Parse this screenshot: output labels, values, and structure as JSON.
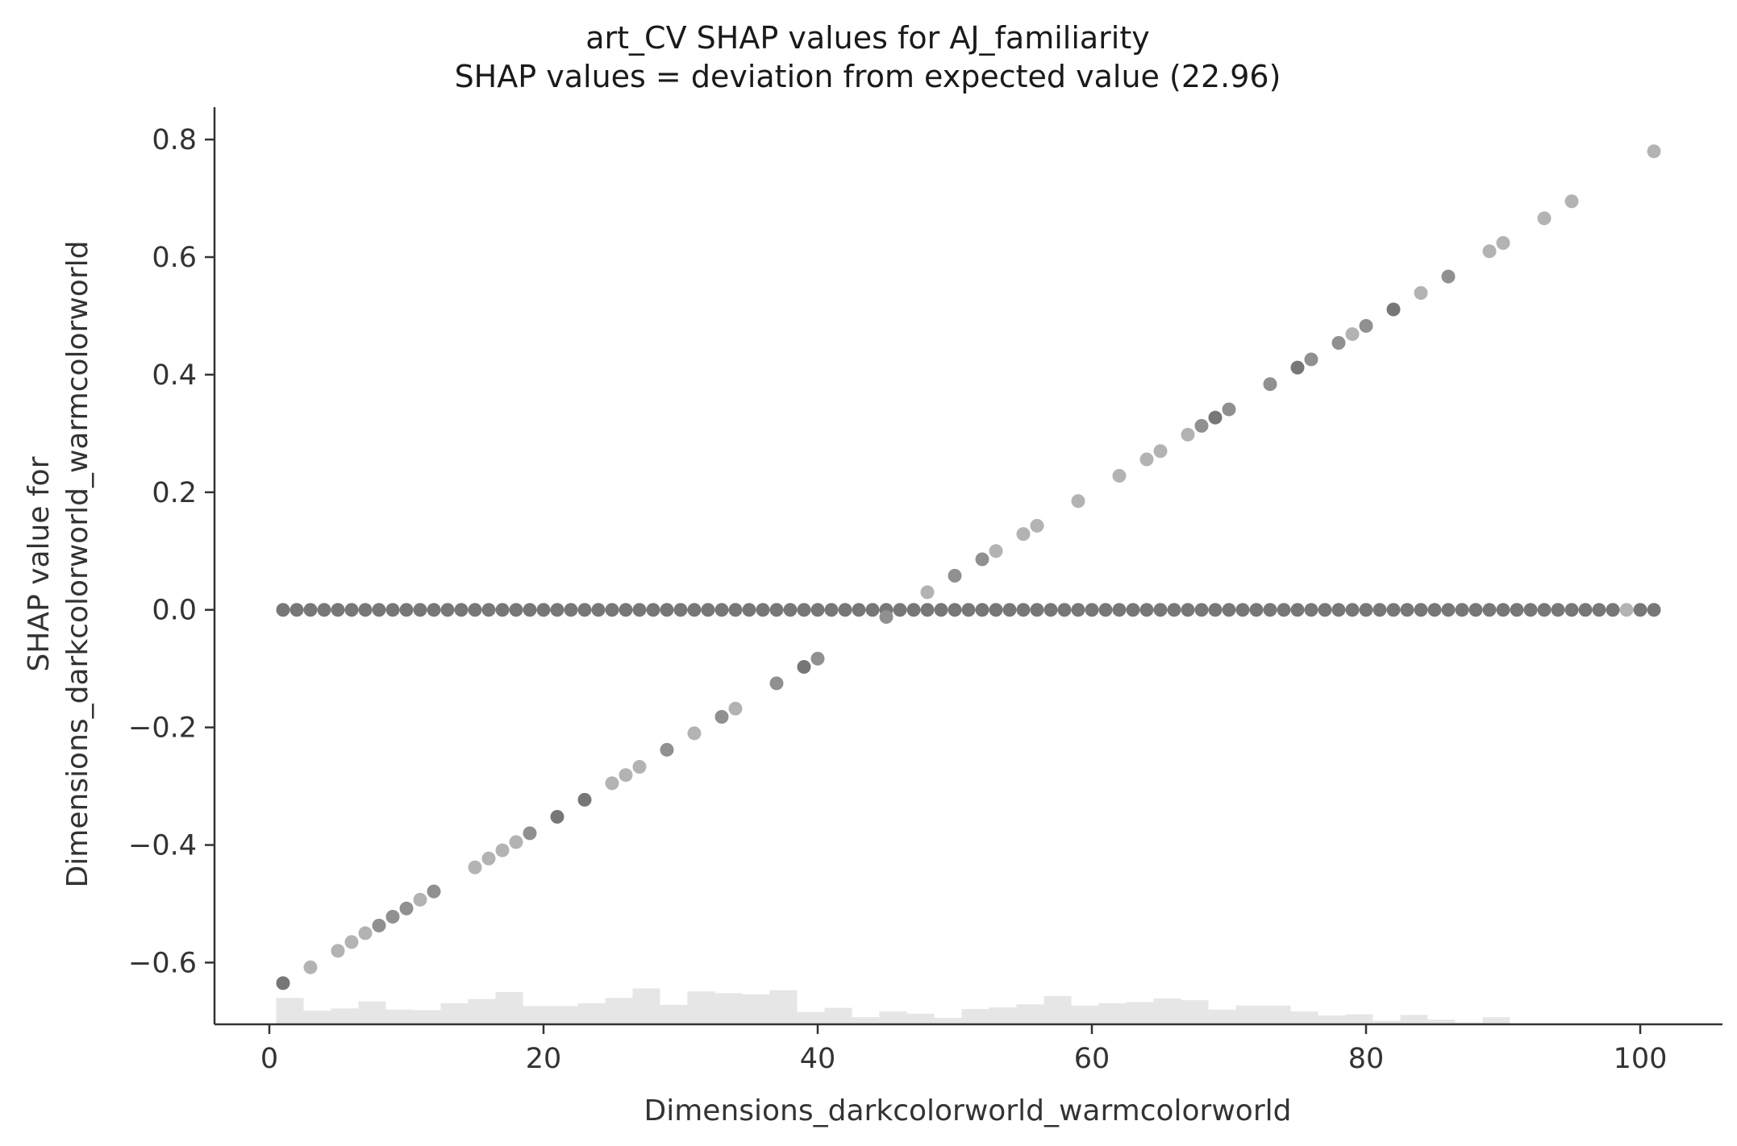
{
  "chart_data": {
    "type": "scatter",
    "title": "art_CV SHAP values for AJ_familiarity",
    "subtitle": "SHAP values = deviation from expected value (22.96)",
    "xlabel": "Dimensions_darkcolorworld_warmcolorworld",
    "ylabel_line1": "SHAP value for",
    "ylabel_line2": "Dimensions_darkcolorworld_warmcolorworld",
    "xlim": [
      -4,
      106
    ],
    "ylim": [
      -0.705,
      0.855
    ],
    "xticks": [
      0,
      20,
      40,
      60,
      80,
      100
    ],
    "xtick_labels": [
      "0",
      "20",
      "40",
      "60",
      "80",
      "100"
    ],
    "yticks": [
      -0.6,
      -0.4,
      -0.2,
      0.0,
      0.2,
      0.4,
      0.6,
      0.8
    ],
    "ytick_labels": [
      "−0.6",
      "−0.4",
      "−0.2",
      "0.0",
      "0.2",
      "0.4",
      "0.6",
      "0.8"
    ],
    "grid": false,
    "colors": {
      "dark": "#777777",
      "mid": "#909090",
      "light": "#b3b3b3",
      "hist": "#e6e6e6",
      "axis": "#333333"
    },
    "diagonal_points": [
      {
        "x": 1,
        "y": -0.635,
        "c": "dark"
      },
      {
        "x": 3,
        "y": -0.608,
        "c": "light"
      },
      {
        "x": 5,
        "y": -0.58,
        "c": "light"
      },
      {
        "x": 6,
        "y": -0.565,
        "c": "light"
      },
      {
        "x": 7,
        "y": -0.55,
        "c": "light"
      },
      {
        "x": 8,
        "y": -0.537,
        "c": "mid"
      },
      {
        "x": 9,
        "y": -0.522,
        "c": "mid"
      },
      {
        "x": 10,
        "y": -0.508,
        "c": "mid"
      },
      {
        "x": 11,
        "y": -0.493,
        "c": "light"
      },
      {
        "x": 12,
        "y": -0.479,
        "c": "mid"
      },
      {
        "x": 15,
        "y": -0.438,
        "c": "light"
      },
      {
        "x": 16,
        "y": -0.423,
        "c": "light"
      },
      {
        "x": 17,
        "y": -0.409,
        "c": "light"
      },
      {
        "x": 18,
        "y": -0.395,
        "c": "light"
      },
      {
        "x": 19,
        "y": -0.38,
        "c": "mid"
      },
      {
        "x": 21,
        "y": -0.352,
        "c": "dark"
      },
      {
        "x": 23,
        "y": -0.323,
        "c": "dark"
      },
      {
        "x": 25,
        "y": -0.295,
        "c": "light"
      },
      {
        "x": 26,
        "y": -0.281,
        "c": "light"
      },
      {
        "x": 27,
        "y": -0.267,
        "c": "light"
      },
      {
        "x": 29,
        "y": -0.238,
        "c": "mid"
      },
      {
        "x": 31,
        "y": -0.21,
        "c": "light"
      },
      {
        "x": 33,
        "y": -0.182,
        "c": "mid"
      },
      {
        "x": 34,
        "y": -0.168,
        "c": "light"
      },
      {
        "x": 37,
        "y": -0.125,
        "c": "mid"
      },
      {
        "x": 39,
        "y": -0.097,
        "c": "dark"
      },
      {
        "x": 40,
        "y": -0.083,
        "c": "mid"
      },
      {
        "x": 45,
        "y": -0.012,
        "c": "mid"
      },
      {
        "x": 48,
        "y": 0.03,
        "c": "light"
      },
      {
        "x": 50,
        "y": 0.058,
        "c": "mid"
      },
      {
        "x": 52,
        "y": 0.086,
        "c": "mid"
      },
      {
        "x": 53,
        "y": 0.1,
        "c": "light"
      },
      {
        "x": 55,
        "y": 0.129,
        "c": "light"
      },
      {
        "x": 56,
        "y": 0.143,
        "c": "light"
      },
      {
        "x": 59,
        "y": 0.185,
        "c": "light"
      },
      {
        "x": 62,
        "y": 0.228,
        "c": "light"
      },
      {
        "x": 64,
        "y": 0.256,
        "c": "light"
      },
      {
        "x": 65,
        "y": 0.27,
        "c": "light"
      },
      {
        "x": 67,
        "y": 0.298,
        "c": "light"
      },
      {
        "x": 68,
        "y": 0.313,
        "c": "mid"
      },
      {
        "x": 69,
        "y": 0.327,
        "c": "dark"
      },
      {
        "x": 70,
        "y": 0.341,
        "c": "mid"
      },
      {
        "x": 73,
        "y": 0.384,
        "c": "mid"
      },
      {
        "x": 75,
        "y": 0.412,
        "c": "dark"
      },
      {
        "x": 76,
        "y": 0.426,
        "c": "mid"
      },
      {
        "x": 78,
        "y": 0.454,
        "c": "mid"
      },
      {
        "x": 79,
        "y": 0.469,
        "c": "light"
      },
      {
        "x": 80,
        "y": 0.483,
        "c": "mid"
      },
      {
        "x": 82,
        "y": 0.511,
        "c": "dark"
      },
      {
        "x": 84,
        "y": 0.539,
        "c": "light"
      },
      {
        "x": 86,
        "y": 0.567,
        "c": "mid"
      },
      {
        "x": 89,
        "y": 0.61,
        "c": "light"
      },
      {
        "x": 90,
        "y": 0.624,
        "c": "light"
      },
      {
        "x": 93,
        "y": 0.666,
        "c": "light"
      },
      {
        "x": 95,
        "y": 0.695,
        "c": "light"
      },
      {
        "x": 101,
        "y": 0.78,
        "c": "light"
      }
    ],
    "zero_line_points": {
      "x_start": 1,
      "x_end": 101,
      "step": 1,
      "y": 0.0,
      "c": "dark",
      "light_x": [
        99
      ]
    },
    "histogram": {
      "bin_start": 0.5,
      "bin_width": 2.0,
      "heights": [
        0.045,
        0.023,
        0.027,
        0.039,
        0.025,
        0.024,
        0.036,
        0.043,
        0.055,
        0.031,
        0.031,
        0.036,
        0.045,
        0.061,
        0.033,
        0.056,
        0.053,
        0.051,
        0.058,
        0.021,
        0.028,
        0.012,
        0.022,
        0.018,
        0.011,
        0.026,
        0.029,
        0.034,
        0.048,
        0.032,
        0.036,
        0.038,
        0.044,
        0.041,
        0.025,
        0.032,
        0.032,
        0.022,
        0.015,
        0.017,
        0.006,
        0.016,
        0.008,
        0.003,
        0.012
      ]
    }
  }
}
